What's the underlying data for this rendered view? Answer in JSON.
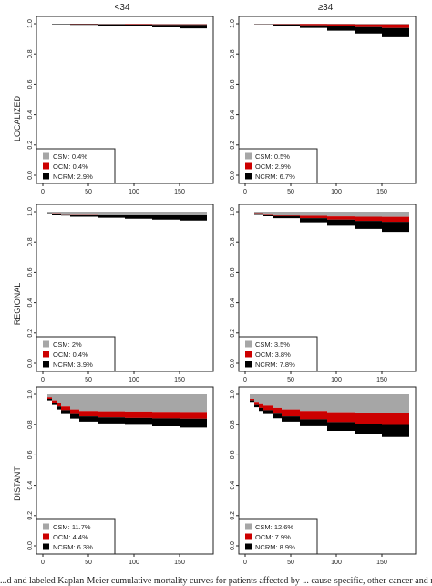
{
  "column_headers": [
    "<34",
    "≥34"
  ],
  "row_labels": [
    "LOCALIZED",
    "REGIONAL",
    "DISTANT"
  ],
  "caption": "...d and labeled Kaplan-Meier cumulative mortality curves for patients affected by ... cause-specific, other-cancer and non-cancer mortality...",
  "colors": {
    "CSM": "#a6a6a6",
    "OCM": "#cc0000",
    "NCRM": "#000000"
  },
  "chart_data": [
    {
      "type": "area",
      "column": "<34",
      "row": "LOCALIZED",
      "x": [
        0,
        10,
        30,
        60,
        90,
        120,
        150,
        180
      ],
      "series": [
        {
          "name": "CSM",
          "label": "CSM: 0.4%",
          "values": [
            0,
            0.001,
            0.002,
            0.003,
            0.003,
            0.004,
            0.004,
            0.004
          ]
        },
        {
          "name": "OCM",
          "label": "OCM: 0.4%",
          "values": [
            0,
            0.001,
            0.001,
            0.002,
            0.003,
            0.003,
            0.004,
            0.004
          ]
        },
        {
          "name": "NCRM",
          "label": "NCRM: 2.9%",
          "values": [
            0,
            0.002,
            0.004,
            0.008,
            0.012,
            0.017,
            0.023,
            0.029
          ]
        }
      ],
      "xlim": [
        0,
        180
      ],
      "ylim": [
        0,
        1
      ],
      "xticks": [
        0,
        50,
        100,
        150
      ],
      "yticks": [
        0,
        0.2,
        0.4,
        0.6,
        0.8,
        1.0
      ],
      "legend": "bottom-left"
    },
    {
      "type": "area",
      "column": "≥34",
      "row": "LOCALIZED",
      "x": [
        0,
        10,
        30,
        60,
        90,
        120,
        150,
        180
      ],
      "series": [
        {
          "name": "CSM",
          "label": "CSM: 0.5%",
          "values": [
            0,
            0.0005,
            0.001,
            0.002,
            0.003,
            0.004,
            0.0045,
            0.005
          ]
        },
        {
          "name": "OCM",
          "label": "OCM: 2.9%",
          "values": [
            0,
            0.001,
            0.003,
            0.008,
            0.013,
            0.019,
            0.024,
            0.029
          ]
        },
        {
          "name": "NCRM",
          "label": "NCRM: 6.7%",
          "values": [
            0,
            0.002,
            0.008,
            0.018,
            0.03,
            0.042,
            0.055,
            0.067
          ]
        }
      ],
      "xlim": [
        0,
        180
      ],
      "ylim": [
        0,
        1
      ],
      "xticks": [
        0,
        50,
        100,
        150
      ],
      "yticks": [
        0,
        0.2,
        0.4,
        0.6,
        0.8,
        1.0
      ],
      "legend": "bottom-left"
    },
    {
      "type": "area",
      "column": "<34",
      "row": "REGIONAL",
      "x": [
        0,
        5,
        10,
        20,
        30,
        60,
        90,
        120,
        150,
        180
      ],
      "series": [
        {
          "name": "CSM",
          "label": "CSM: 2%",
          "values": [
            0,
            0.006,
            0.011,
            0.015,
            0.017,
            0.018,
            0.019,
            0.02,
            0.02,
            0.02
          ]
        },
        {
          "name": "OCM",
          "label": "OCM: 0.4%",
          "values": [
            0,
            0,
            0.001,
            0.001,
            0.002,
            0.002,
            0.003,
            0.003,
            0.004,
            0.004
          ]
        },
        {
          "name": "NCRM",
          "label": "NCRM: 3.9%",
          "values": [
            0,
            0.003,
            0.006,
            0.01,
            0.014,
            0.02,
            0.025,
            0.03,
            0.035,
            0.039
          ]
        }
      ],
      "xlim": [
        0,
        180
      ],
      "ylim": [
        0,
        1
      ],
      "xticks": [
        0,
        50,
        100,
        150
      ],
      "yticks": [
        0,
        0.2,
        0.4,
        0.6,
        0.8,
        1.0
      ],
      "legend": "bottom-left"
    },
    {
      "type": "area",
      "column": "≥34",
      "row": "REGIONAL",
      "x": [
        0,
        10,
        20,
        30,
        60,
        90,
        120,
        150,
        180
      ],
      "series": [
        {
          "name": "CSM",
          "label": "CSM: 3.5%",
          "values": [
            0,
            0.008,
            0.015,
            0.02,
            0.027,
            0.031,
            0.033,
            0.034,
            0.035
          ]
        },
        {
          "name": "OCM",
          "label": "OCM: 3.8%",
          "values": [
            0,
            0.003,
            0.006,
            0.009,
            0.016,
            0.022,
            0.028,
            0.033,
            0.038
          ]
        },
        {
          "name": "NCRM",
          "label": "NCRM: 7.8%",
          "values": [
            0,
            0.004,
            0.009,
            0.014,
            0.027,
            0.04,
            0.053,
            0.066,
            0.078
          ]
        }
      ],
      "xlim": [
        0,
        180
      ],
      "ylim": [
        0,
        1
      ],
      "xticks": [
        0,
        50,
        100,
        150
      ],
      "yticks": [
        0,
        0.2,
        0.4,
        0.6,
        0.8,
        1.0
      ],
      "legend": "bottom-left"
    },
    {
      "type": "area",
      "column": "<34",
      "row": "DISTANT",
      "x": [
        0,
        5,
        10,
        15,
        20,
        30,
        40,
        60,
        90,
        120,
        150,
        180
      ],
      "series": [
        {
          "name": "CSM",
          "label": "CSM: 11.7%",
          "values": [
            0,
            0.02,
            0.04,
            0.06,
            0.08,
            0.1,
            0.11,
            0.112,
            0.114,
            0.116,
            0.117,
            0.117
          ]
        },
        {
          "name": "OCM",
          "label": "OCM: 4.4%",
          "values": [
            0,
            0.01,
            0.015,
            0.02,
            0.025,
            0.03,
            0.035,
            0.04,
            0.042,
            0.043,
            0.044,
            0.044
          ]
        },
        {
          "name": "NCRM",
          "label": "NCRM: 6.3%",
          "values": [
            0,
            0.01,
            0.015,
            0.02,
            0.025,
            0.03,
            0.035,
            0.04,
            0.045,
            0.052,
            0.058,
            0.063
          ]
        }
      ],
      "xlim": [
        0,
        180
      ],
      "ylim": [
        0,
        1
      ],
      "xticks": [
        0,
        50,
        100,
        150
      ],
      "yticks": [
        0,
        0.2,
        0.4,
        0.6,
        0.8,
        1.0
      ],
      "legend": "bottom-left"
    },
    {
      "type": "area",
      "column": "≥34",
      "row": "DISTANT",
      "x": [
        0,
        5,
        10,
        15,
        20,
        30,
        40,
        60,
        90,
        120,
        150,
        180
      ],
      "series": [
        {
          "name": "CSM",
          "label": "CSM: 12.6%",
          "values": [
            0,
            0.03,
            0.05,
            0.065,
            0.075,
            0.09,
            0.1,
            0.11,
            0.118,
            0.122,
            0.125,
            0.126
          ]
        },
        {
          "name": "OCM",
          "label": "OCM: 7.9%",
          "values": [
            0,
            0.01,
            0.02,
            0.025,
            0.03,
            0.038,
            0.045,
            0.055,
            0.065,
            0.072,
            0.077,
            0.079
          ]
        },
        {
          "name": "NCRM",
          "label": "NCRM: 8.9%",
          "values": [
            0,
            0.01,
            0.015,
            0.02,
            0.025,
            0.03,
            0.035,
            0.045,
            0.058,
            0.07,
            0.08,
            0.089
          ]
        }
      ],
      "xlim": [
        0,
        180
      ],
      "ylim": [
        0,
        1
      ],
      "xticks": [
        0,
        50,
        100,
        150
      ],
      "yticks": [
        0,
        0.2,
        0.4,
        0.6,
        0.8,
        1.0
      ],
      "legend": "bottom-left"
    }
  ]
}
